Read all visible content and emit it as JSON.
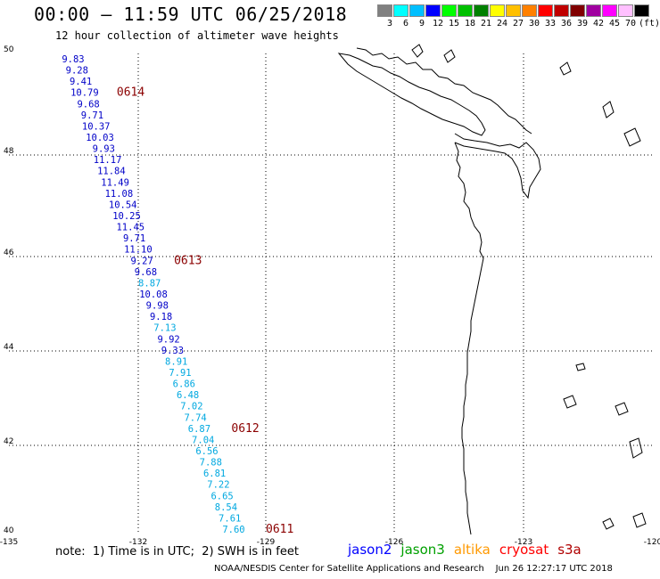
{
  "header": {
    "title": "00:00 – 11:59 UTC 06/25/2018",
    "subtitle": "12 hour collection of altimeter wave heights"
  },
  "colorbar": {
    "colors": [
      "#808080",
      "#00ffff",
      "#00bfff",
      "#0000ff",
      "#00ff00",
      "#00c000",
      "#008000",
      "#ffff00",
      "#ffc000",
      "#ff8000",
      "#ff0000",
      "#c00000",
      "#800000",
      "#a000a0",
      "#ff00ff",
      "#ffc0ff",
      "#000000"
    ],
    "labels": [
      "3",
      "6",
      "9",
      "12",
      "15",
      "18",
      "21",
      "24",
      "27",
      "30",
      "33",
      "36",
      "39",
      "42",
      "45",
      "70",
      "(ft)"
    ]
  },
  "axes": {
    "lon_labels": [
      "-135",
      "-132",
      "-129",
      "-126",
      "-123",
      "-120"
    ],
    "lat_labels": [
      "50",
      "48",
      "46",
      "44",
      "42",
      "40"
    ]
  },
  "track": {
    "values": [
      "9.83",
      "9.28",
      "9.41",
      "10.79",
      "9.68",
      "9.71",
      "10.37",
      "10.03",
      "9.93",
      "11.17",
      "11.84",
      "11.49",
      "11.08",
      "10.54",
      "10.25",
      "11.45",
      "9.71",
      "11.10",
      "9.27",
      "9.68",
      "8.87",
      "10.08",
      "9.98",
      "9.18",
      "7.13",
      "9.92",
      "9.33",
      "8.91",
      "7.91",
      "6.86",
      "6.48",
      "7.02",
      "7.74",
      "6.87",
      "7.04",
      "6.56",
      "7.88",
      "6.81",
      "7.22",
      "6.65",
      "8.54",
      "7.61",
      "7.60"
    ],
    "date_labels": [
      "0614",
      "0613",
      "0612",
      "0611"
    ]
  },
  "footer": {
    "note": "note:  1) Time is in UTC;  2) SWH is in feet",
    "legend": [
      "jason2",
      "jason3",
      "altika",
      "cryosat",
      "s3a"
    ],
    "legend_colors": [
      "#0000ff",
      "#00a000",
      "#ff9900",
      "#ff0000",
      "#b00000"
    ],
    "credit": "NOAA/NESDIS Center for Satellite Applications and Research    Jun 26 12:27:17 UTC 2018"
  }
}
